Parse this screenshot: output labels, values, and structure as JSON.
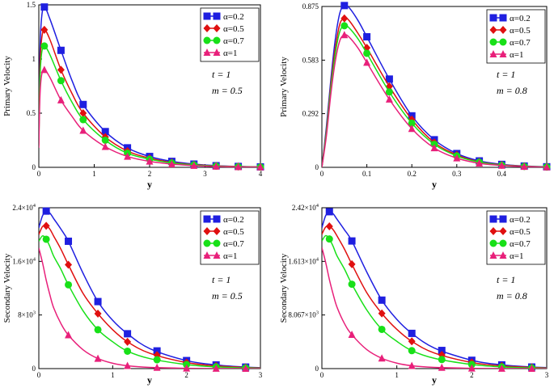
{
  "figure": {
    "caption": ""
  },
  "chart_data": [
    {
      "type": "line",
      "id": "primary-m05",
      "ylabel": "Primary Velocity",
      "xlabel": "y",
      "xlim": [
        0,
        4
      ],
      "ylim": [
        0,
        1.5
      ],
      "xticks": [
        0,
        1,
        2,
        3,
        4
      ],
      "xtick_labels": [
        "0",
        "1",
        "2",
        "3",
        "4"
      ],
      "yticks": [
        0,
        0.5,
        1,
        1.5
      ],
      "ytick_labels": [
        "0",
        "0.5",
        "1",
        "1.5"
      ],
      "annotations": [
        "t = 1",
        "m = 0.5"
      ],
      "legend_position": "top-right",
      "series": [
        {
          "name": "α=0.2",
          "color": "#1f1fe0",
          "marker": "square",
          "x": [
            0,
            0.02,
            0.05,
            0.1,
            0.2,
            0.4,
            0.6,
            0.8,
            1.2,
            1.6,
            2.0,
            2.4,
            2.8,
            3.2,
            3.6,
            4.0
          ],
          "y": [
            0.25,
            1.05,
            1.38,
            1.48,
            1.37,
            1.08,
            0.8,
            0.58,
            0.33,
            0.18,
            0.1,
            0.055,
            0.03,
            0.015,
            0.008,
            0.004
          ],
          "markers_x": [
            0.1,
            0.4,
            0.8,
            1.2,
            1.6,
            2.0,
            2.4,
            2.8,
            3.2,
            3.6,
            4.0
          ]
        },
        {
          "name": "α=0.5",
          "color": "#e01010",
          "marker": "diamond",
          "x": [
            0,
            0.02,
            0.05,
            0.1,
            0.2,
            0.4,
            0.6,
            0.8,
            1.2,
            1.6,
            2.0,
            2.4,
            2.8,
            3.2,
            3.6,
            4.0
          ],
          "y": [
            0.22,
            0.9,
            1.18,
            1.27,
            1.18,
            0.9,
            0.68,
            0.5,
            0.28,
            0.15,
            0.085,
            0.045,
            0.025,
            0.013,
            0.007,
            0.003
          ],
          "markers_x": [
            0.1,
            0.4,
            0.8,
            1.2,
            1.6,
            2.0,
            2.4,
            2.8,
            3.2,
            3.6,
            4.0
          ]
        },
        {
          "name": "α=0.7",
          "color": "#18e018",
          "marker": "circle",
          "x": [
            0,
            0.02,
            0.05,
            0.1,
            0.2,
            0.4,
            0.6,
            0.8,
            1.2,
            1.6,
            2.0,
            2.4,
            2.8,
            3.2,
            3.6,
            4.0
          ],
          "y": [
            0.2,
            0.8,
            1.05,
            1.12,
            1.04,
            0.8,
            0.6,
            0.44,
            0.25,
            0.13,
            0.075,
            0.04,
            0.022,
            0.011,
            0.006,
            0.003
          ],
          "markers_x": [
            0.1,
            0.4,
            0.8,
            1.2,
            1.6,
            2.0,
            2.4,
            2.8,
            3.2,
            3.6,
            4.0
          ]
        },
        {
          "name": "α=1",
          "color": "#e8207a",
          "marker": "triangle",
          "x": [
            0,
            0.02,
            0.05,
            0.1,
            0.2,
            0.4,
            0.6,
            0.8,
            1.2,
            1.6,
            2.0,
            2.4,
            2.8,
            3.2,
            3.6,
            4.0
          ],
          "y": [
            0.18,
            0.65,
            0.85,
            0.9,
            0.83,
            0.62,
            0.47,
            0.34,
            0.19,
            0.1,
            0.055,
            0.03,
            0.016,
            0.008,
            0.004,
            0.002
          ],
          "markers_x": [
            0.1,
            0.4,
            0.8,
            1.2,
            1.6,
            2.0,
            2.4,
            2.8,
            3.2,
            3.6,
            4.0
          ]
        }
      ]
    },
    {
      "type": "line",
      "id": "primary-m08",
      "ylabel": "Primary Velocity",
      "xlabel": "y",
      "xlim": [
        0,
        0.5
      ],
      "ylim": [
        0,
        0.875
      ],
      "xticks": [
        0,
        0.1,
        0.2,
        0.3,
        0.4
      ],
      "xtick_labels": [
        "0",
        "0.1",
        "0.2",
        "0.3",
        "0.4"
      ],
      "yticks": [
        0,
        0.292,
        0.583,
        0.875
      ],
      "ytick_labels": [
        "0",
        "0.292",
        "0.583",
        "0.875"
      ],
      "annotations": [
        "t = 1",
        "m = 0.8"
      ],
      "legend_position": "top-right",
      "series": [
        {
          "name": "α=0.2",
          "color": "#1f1fe0",
          "marker": "square",
          "x": [
            0,
            0.01,
            0.02,
            0.03,
            0.04,
            0.05,
            0.06,
            0.08,
            0.1,
            0.15,
            0.2,
            0.25,
            0.3,
            0.35,
            0.4,
            0.45,
            0.5
          ],
          "y": [
            0,
            0.22,
            0.48,
            0.7,
            0.84,
            0.88,
            0.87,
            0.8,
            0.71,
            0.48,
            0.28,
            0.15,
            0.075,
            0.035,
            0.016,
            0.007,
            0.003
          ],
          "markers_x": [
            0.05,
            0.1,
            0.15,
            0.2,
            0.25,
            0.3,
            0.35,
            0.4,
            0.45,
            0.5
          ]
        },
        {
          "name": "α=0.5",
          "color": "#e01010",
          "marker": "diamond",
          "x": [
            0,
            0.01,
            0.02,
            0.03,
            0.04,
            0.05,
            0.06,
            0.08,
            0.1,
            0.15,
            0.2,
            0.25,
            0.3,
            0.35,
            0.4,
            0.45,
            0.5
          ],
          "y": [
            0,
            0.2,
            0.45,
            0.65,
            0.78,
            0.81,
            0.8,
            0.73,
            0.65,
            0.44,
            0.26,
            0.135,
            0.068,
            0.03,
            0.014,
            0.006,
            0.002
          ],
          "markers_x": [
            0.05,
            0.1,
            0.15,
            0.2,
            0.25,
            0.3,
            0.35,
            0.4,
            0.45,
            0.5
          ]
        },
        {
          "name": "α=0.7",
          "color": "#18e018",
          "marker": "circle",
          "x": [
            0,
            0.01,
            0.02,
            0.03,
            0.04,
            0.05,
            0.06,
            0.08,
            0.1,
            0.15,
            0.2,
            0.25,
            0.3,
            0.35,
            0.4,
            0.45,
            0.5
          ],
          "y": [
            0,
            0.19,
            0.43,
            0.62,
            0.74,
            0.77,
            0.76,
            0.7,
            0.62,
            0.41,
            0.24,
            0.125,
            0.062,
            0.028,
            0.012,
            0.005,
            0.002
          ],
          "markers_x": [
            0.05,
            0.1,
            0.15,
            0.2,
            0.25,
            0.3,
            0.35,
            0.4,
            0.45,
            0.5
          ]
        },
        {
          "name": "α=1",
          "color": "#e8207a",
          "marker": "triangle",
          "x": [
            0,
            0.01,
            0.02,
            0.03,
            0.04,
            0.05,
            0.06,
            0.08,
            0.1,
            0.15,
            0.2,
            0.25,
            0.3,
            0.35,
            0.4,
            0.45,
            0.5
          ],
          "y": [
            0,
            0.17,
            0.4,
            0.58,
            0.69,
            0.72,
            0.71,
            0.65,
            0.57,
            0.37,
            0.21,
            0.105,
            0.05,
            0.022,
            0.01,
            0.004,
            0.001
          ],
          "markers_x": [
            0.05,
            0.1,
            0.15,
            0.2,
            0.25,
            0.3,
            0.35,
            0.4,
            0.45,
            0.5
          ]
        }
      ]
    },
    {
      "type": "line",
      "id": "secondary-m05",
      "ylabel": "Secondary Velocity",
      "xlabel": "y",
      "xlim": [
        0,
        3
      ],
      "ylim": [
        0,
        24000
      ],
      "xticks": [
        0,
        1,
        2,
        3
      ],
      "xtick_labels": [
        "0",
        "1",
        "2",
        "3"
      ],
      "yticks": [
        0,
        8000,
        16000,
        24000
      ],
      "ytick_labels": [
        {
          "base": "0",
          "exp": ""
        },
        {
          "base": "8×10",
          "exp": "3"
        },
        {
          "base": "1.6×10",
          "exp": "4"
        },
        {
          "base": "2.4×10",
          "exp": "4"
        }
      ],
      "annotations": [
        "t = 1",
        "m = 0.5"
      ],
      "legend_position": "top-right",
      "series": [
        {
          "name": "α=0.2",
          "color": "#1f1fe0",
          "marker": "square",
          "x": [
            0,
            0.05,
            0.1,
            0.15,
            0.2,
            0.3,
            0.4,
            0.6,
            0.8,
            1.0,
            1.2,
            1.5,
            2.0,
            2.4,
            2.8,
            3.0
          ],
          "y": [
            21000,
            22800,
            23500,
            23200,
            22400,
            20800,
            19000,
            14200,
            10000,
            7200,
            5200,
            3000,
            1200,
            550,
            230,
            140
          ],
          "markers_x": [
            0.1,
            0.4,
            0.8,
            1.2,
            1.6,
            2.0,
            2.4,
            2.8
          ]
        },
        {
          "name": "α=0.5",
          "color": "#e01010",
          "marker": "diamond",
          "x": [
            0,
            0.05,
            0.1,
            0.15,
            0.2,
            0.3,
            0.4,
            0.6,
            0.8,
            1.0,
            1.2,
            1.5,
            2.0,
            2.4,
            2.8,
            3.0
          ],
          "y": [
            20000,
            21200,
            21300,
            20800,
            19800,
            17800,
            15500,
            11200,
            8200,
            5800,
            4000,
            2300,
            900,
            400,
            170,
            100
          ],
          "markers_x": [
            0.1,
            0.4,
            0.8,
            1.2,
            1.6,
            2.0,
            2.4,
            2.8
          ]
        },
        {
          "name": "α=0.7",
          "color": "#18e018",
          "marker": "circle",
          "x": [
            0,
            0.05,
            0.1,
            0.15,
            0.2,
            0.3,
            0.4,
            0.6,
            0.8,
            1.0,
            1.2,
            1.5,
            2.0,
            2.4,
            2.8,
            3.0
          ],
          "y": [
            19000,
            19800,
            19300,
            18200,
            16800,
            14800,
            12500,
            8600,
            5800,
            4000,
            2600,
            1500,
            600,
            250,
            100,
            60
          ],
          "markers_x": [
            0.1,
            0.4,
            0.8,
            1.2,
            1.6,
            2.0,
            2.4,
            2.8
          ]
        },
        {
          "name": "α=1",
          "color": "#e8207a",
          "marker": "triangle",
          "x": [
            0,
            0.05,
            0.1,
            0.15,
            0.2,
            0.3,
            0.4,
            0.6,
            0.8,
            1.0,
            1.2,
            1.5,
            2.0,
            2.4,
            2.8,
            3.0
          ],
          "y": [
            18000,
            15800,
            13200,
            11000,
            9100,
            6700,
            5000,
            2800,
            1500,
            800,
            420,
            180,
            50,
            15,
            5,
            2
          ],
          "markers_x": [
            0.4,
            0.8,
            1.2,
            1.6,
            2.0,
            2.4,
            2.8
          ]
        }
      ]
    },
    {
      "type": "line",
      "id": "secondary-m08",
      "ylabel": "Secondary Velocity",
      "xlabel": "y",
      "xlim": [
        0,
        3
      ],
      "ylim": [
        0,
        24200
      ],
      "xticks": [
        0,
        1,
        2,
        3
      ],
      "xtick_labels": [
        "0",
        "1",
        "2",
        "3"
      ],
      "yticks": [
        0,
        8067,
        16130,
        24200
      ],
      "ytick_labels": [
        {
          "base": "0",
          "exp": ""
        },
        {
          "base": "8.067×10",
          "exp": "3"
        },
        {
          "base": "1.613×10",
          "exp": "4"
        },
        {
          "base": "2.42×10",
          "exp": "4"
        }
      ],
      "annotations": [
        "t = 1",
        "m = 0.8"
      ],
      "legend_position": "top-right",
      "series": [
        {
          "name": "α=0.2",
          "color": "#1f1fe0",
          "marker": "square",
          "x": [
            0,
            0.05,
            0.1,
            0.15,
            0.2,
            0.3,
            0.4,
            0.6,
            0.8,
            1.0,
            1.2,
            1.5,
            2.0,
            2.4,
            2.8,
            3.0
          ],
          "y": [
            21200,
            23000,
            23600,
            23300,
            22500,
            20900,
            19200,
            14500,
            10300,
            7400,
            5300,
            3100,
            1250,
            560,
            240,
            150
          ],
          "markers_x": [
            0.1,
            0.4,
            0.8,
            1.2,
            1.6,
            2.0,
            2.4,
            2.8
          ]
        },
        {
          "name": "α=0.5",
          "color": "#e01010",
          "marker": "diamond",
          "x": [
            0,
            0.05,
            0.1,
            0.15,
            0.2,
            0.3,
            0.4,
            0.6,
            0.8,
            1.0,
            1.2,
            1.5,
            2.0,
            2.4,
            2.8,
            3.0
          ],
          "y": [
            20200,
            21300,
            21400,
            20900,
            20000,
            18000,
            15700,
            11400,
            8300,
            5900,
            4100,
            2350,
            920,
            410,
            175,
            100
          ],
          "markers_x": [
            0.1,
            0.4,
            0.8,
            1.2,
            1.6,
            2.0,
            2.4,
            2.8
          ]
        },
        {
          "name": "α=0.7",
          "color": "#18e018",
          "marker": "circle",
          "x": [
            0,
            0.05,
            0.1,
            0.15,
            0.2,
            0.3,
            0.4,
            0.6,
            0.8,
            1.0,
            1.2,
            1.5,
            2.0,
            2.4,
            2.8,
            3.0
          ],
          "y": [
            19200,
            20000,
            19500,
            18400,
            17000,
            15000,
            12700,
            8800,
            5900,
            4100,
            2700,
            1550,
            620,
            260,
            105,
            62
          ],
          "markers_x": [
            0.1,
            0.4,
            0.8,
            1.2,
            1.6,
            2.0,
            2.4,
            2.8
          ]
        },
        {
          "name": "α=1",
          "color": "#e8207a",
          "marker": "triangle",
          "x": [
            0,
            0.05,
            0.1,
            0.15,
            0.2,
            0.3,
            0.4,
            0.6,
            0.8,
            1.0,
            1.2,
            1.5,
            2.0,
            2.4,
            2.8,
            3.0
          ],
          "y": [
            18200,
            16000,
            13400,
            11200,
            9300,
            6800,
            5100,
            2850,
            1550,
            820,
            430,
            185,
            52,
            16,
            5,
            2
          ],
          "markers_x": [
            0.4,
            0.8,
            1.2,
            1.6,
            2.0,
            2.4,
            2.8
          ]
        }
      ]
    }
  ]
}
